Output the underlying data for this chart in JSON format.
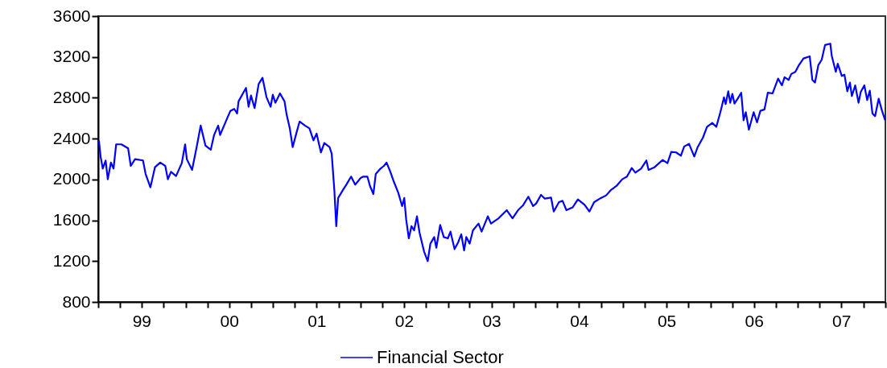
{
  "chart_data": {
    "type": "line",
    "xlim": [
      "1999-01-01",
      "2008-01-01"
    ],
    "ylim": [
      800,
      3600
    ],
    "yticks": [
      800,
      1200,
      1600,
      2000,
      2400,
      2800,
      3200,
      3600
    ],
    "xticks": [
      {
        "value": "1999-01-01",
        "label": null
      },
      {
        "value": "1999-04-01",
        "label": null
      },
      {
        "value": "1999-07-01",
        "label": "99"
      },
      {
        "value": "1999-10-01",
        "label": null
      },
      {
        "value": "2000-01-01",
        "label": null
      },
      {
        "value": "2000-04-01",
        "label": null
      },
      {
        "value": "2000-07-01",
        "label": "00"
      },
      {
        "value": "2000-10-01",
        "label": null
      },
      {
        "value": "2001-01-01",
        "label": null
      },
      {
        "value": "2001-04-01",
        "label": null
      },
      {
        "value": "2001-07-01",
        "label": "01"
      },
      {
        "value": "2001-10-01",
        "label": null
      },
      {
        "value": "2002-01-01",
        "label": null
      },
      {
        "value": "2002-04-01",
        "label": null
      },
      {
        "value": "2002-07-01",
        "label": "02"
      },
      {
        "value": "2002-10-01",
        "label": null
      },
      {
        "value": "2003-01-01",
        "label": null
      },
      {
        "value": "2003-04-01",
        "label": null
      },
      {
        "value": "2003-07-01",
        "label": "03"
      },
      {
        "value": "2003-10-01",
        "label": null
      },
      {
        "value": "2004-01-01",
        "label": null
      },
      {
        "value": "2004-04-01",
        "label": null
      },
      {
        "value": "2004-07-01",
        "label": "04"
      },
      {
        "value": "2004-10-01",
        "label": null
      },
      {
        "value": "2005-01-01",
        "label": null
      },
      {
        "value": "2005-04-01",
        "label": null
      },
      {
        "value": "2005-07-01",
        "label": "05"
      },
      {
        "value": "2005-10-01",
        "label": null
      },
      {
        "value": "2006-01-01",
        "label": null
      },
      {
        "value": "2006-04-01",
        "label": null
      },
      {
        "value": "2006-07-01",
        "label": "06"
      },
      {
        "value": "2006-10-01",
        "label": null
      },
      {
        "value": "2007-01-01",
        "label": null
      },
      {
        "value": "2007-04-01",
        "label": null
      },
      {
        "value": "2007-07-01",
        "label": "07"
      },
      {
        "value": "2007-10-01",
        "label": null
      },
      {
        "value": "2008-01-01",
        "label": null
      }
    ],
    "grid": false,
    "legend": "bottom",
    "x": [
      "1999-01-04",
      "1999-01-11",
      "1999-01-20",
      "1999-02-01",
      "1999-02-10",
      "1999-02-23",
      "1999-03-06",
      "1999-03-17",
      "1999-04-08",
      "1999-05-06",
      "1999-05-17",
      "1999-06-04",
      "1999-07-07",
      "1999-07-18",
      "1999-08-07",
      "1999-08-26",
      "1999-09-17",
      "1999-10-08",
      "1999-10-19",
      "1999-11-01",
      "1999-11-22",
      "1999-12-16",
      "1999-12-30",
      "2000-01-06",
      "2000-01-28",
      "2000-02-16",
      "2000-03-04",
      "2000-03-24",
      "2000-04-15",
      "2000-04-29",
      "2000-05-16",
      "2000-05-24",
      "2000-06-19",
      "2000-07-06",
      "2000-07-22",
      "2000-08-03",
      "2000-08-09",
      "2000-09-09",
      "2000-09-20",
      "2000-09-30",
      "2000-10-15",
      "2000-11-01",
      "2000-11-17",
      "2000-12-04",
      "2000-12-21",
      "2000-12-30",
      "2001-01-10",
      "2001-01-29",
      "2001-02-17",
      "2001-02-26",
      "2001-03-11",
      "2001-03-23",
      "2001-04-10",
      "2001-04-21",
      "2001-05-13",
      "2001-06-01",
      "2001-06-18",
      "2001-07-01",
      "2001-07-19",
      "2001-08-02",
      "2001-08-24",
      "2001-09-02",
      "2001-09-13",
      "2001-09-21",
      "2001-09-29",
      "2001-10-19",
      "2001-11-02",
      "2001-11-22",
      "2001-12-09",
      "2002-01-01",
      "2002-01-12",
      "2002-01-29",
      "2002-02-09",
      "2002-02-23",
      "2002-03-05",
      "2002-03-25",
      "2002-04-08",
      "2002-04-19",
      "2002-05-04",
      "2002-05-20",
      "2002-06-07",
      "2002-06-23",
      "2002-07-02",
      "2002-07-10",
      "2002-07-21",
      "2002-08-01",
      "2002-08-12",
      "2002-08-24",
      "2002-09-04",
      "2002-09-23",
      "2002-10-08",
      "2002-10-19",
      "2002-11-04",
      "2002-11-13",
      "2002-11-29",
      "2002-12-14",
      "2002-12-31",
      "2003-01-11",
      "2003-01-28",
      "2003-02-12",
      "2003-02-25",
      "2003-03-09",
      "2003-03-18",
      "2003-04-01",
      "2003-04-15",
      "2003-05-08",
      "2003-05-21",
      "2003-06-16",
      "2003-06-29",
      "2003-07-31",
      "2003-09-03",
      "2003-09-27",
      "2003-10-20",
      "2003-11-09",
      "2003-12-02",
      "2003-12-22",
      "2004-01-04",
      "2004-01-24",
      "2004-02-09",
      "2004-03-06",
      "2004-03-17",
      "2004-04-08",
      "2004-04-23",
      "2004-05-09",
      "2004-06-04",
      "2004-06-26",
      "2004-07-24",
      "2004-08-13",
      "2004-09-02",
      "2004-09-30",
      "2004-10-22",
      "2004-11-11",
      "2004-12-04",
      "2004-12-28",
      "2005-01-17",
      "2005-02-06",
      "2005-02-21",
      "2005-03-17",
      "2005-04-08",
      "2005-04-17",
      "2005-05-12",
      "2005-06-15",
      "2005-07-05",
      "2005-07-21",
      "2005-08-10",
      "2005-08-30",
      "2005-09-13",
      "2005-10-03",
      "2005-10-25",
      "2005-11-08",
      "2005-11-30",
      "2005-12-17",
      "2006-01-08",
      "2006-01-25",
      "2006-02-11",
      "2006-02-26",
      "2006-03-05",
      "2006-03-16",
      "2006-03-24",
      "2006-04-02",
      "2006-04-11",
      "2006-04-24",
      "2006-05-09",
      "2006-05-19",
      "2006-05-28",
      "2006-06-10",
      "2006-06-30",
      "2006-07-14",
      "2006-07-28",
      "2006-08-14",
      "2006-08-28",
      "2006-09-17",
      "2006-10-10",
      "2006-10-26",
      "2006-11-06",
      "2006-11-23",
      "2006-12-04",
      "2006-12-21",
      "2007-01-05",
      "2007-01-24",
      "2007-02-19",
      "2007-03-02",
      "2007-03-13",
      "2007-03-27",
      "2007-04-10",
      "2007-04-24",
      "2007-05-16",
      "2007-05-22",
      "2007-06-08",
      "2007-06-16",
      "2007-07-03",
      "2007-07-14",
      "2007-07-26",
      "2007-08-06",
      "2007-08-14",
      "2007-08-28",
      "2007-09-11",
      "2007-09-20",
      "2007-10-05",
      "2007-10-17",
      "2007-10-28",
      "2007-11-08",
      "2007-11-19",
      "2007-12-04",
      "2007-12-18",
      "2007-12-31"
    ],
    "series": [
      {
        "name": "Financial Sector",
        "color": "#0000ff",
        "values": [
          2383,
          2225,
          2107,
          2186,
          2002,
          2165,
          2107,
          2344,
          2344,
          2304,
          2133,
          2199,
          2186,
          2054,
          1923,
          2120,
          2165,
          2133,
          2002,
          2075,
          2033,
          2160,
          2344,
          2199,
          2094,
          2317,
          2528,
          2331,
          2291,
          2436,
          2528,
          2436,
          2580,
          2672,
          2691,
          2646,
          2765,
          2896,
          2712,
          2822,
          2699,
          2935,
          2996,
          2804,
          2712,
          2830,
          2751,
          2843,
          2765,
          2633,
          2501,
          2317,
          2475,
          2567,
          2528,
          2501,
          2383,
          2449,
          2265,
          2357,
          2317,
          2252,
          1897,
          1542,
          1818,
          1897,
          1949,
          2028,
          1949,
          2015,
          2028,
          2028,
          1936,
          1857,
          2054,
          2107,
          2133,
          2165,
          2081,
          1975,
          1870,
          1739,
          1818,
          1607,
          1423,
          1542,
          1502,
          1639,
          1476,
          1292,
          1200,
          1371,
          1436,
          1331,
          1555,
          1436,
          1423,
          1489,
          1318,
          1384,
          1463,
          1305,
          1436,
          1371,
          1502,
          1568,
          1489,
          1639,
          1568,
          1620,
          1699,
          1620,
          1699,
          1744,
          1831,
          1739,
          1765,
          1849,
          1812,
          1823,
          1686,
          1778,
          1791,
          1699,
          1726,
          1805,
          1752,
          1686,
          1778,
          1818,
          1844,
          1897,
          1936,
          2002,
          2028,
          2112,
          2067,
          2107,
          2186,
          2094,
          2120,
          2191,
          2160,
          2270,
          2265,
          2233,
          2323,
          2349,
          2225,
          2317,
          2409,
          2515,
          2554,
          2515,
          2659,
          2804,
          2738,
          2864,
          2751,
          2838,
          2743,
          2791,
          2849,
          2580,
          2659,
          2488,
          2659,
          2559,
          2672,
          2686,
          2849,
          2843,
          2988,
          2922,
          3001,
          2975,
          3033,
          3054,
          3120,
          3185,
          3206,
          2975,
          2949,
          3120,
          3172,
          3317,
          3330,
          3212,
          3054,
          3133,
          3014,
          3027,
          2864,
          2949,
          2817,
          2922,
          2751,
          2856,
          2922,
          2778,
          2870,
          2646,
          2620,
          2791,
          2672,
          2580
        ]
      }
    ]
  }
}
